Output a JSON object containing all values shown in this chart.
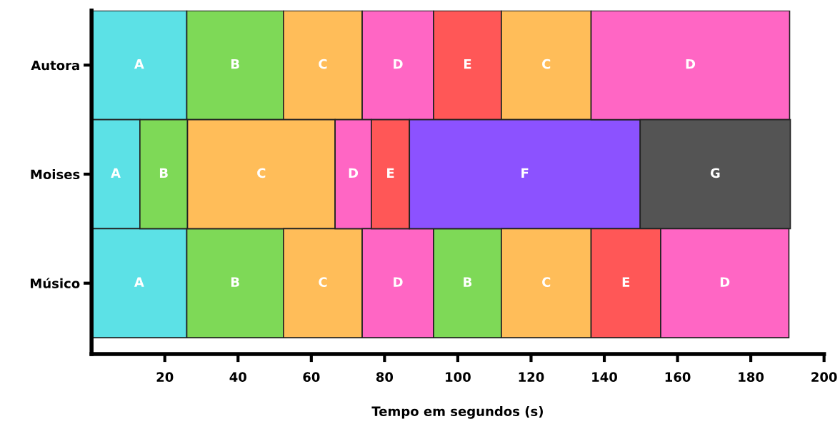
{
  "chart_data": {
    "type": "bar",
    "orientation": "horizontal",
    "stacked": true,
    "xlabel": "Tempo em segundos (s)",
    "categories": [
      "Autora",
      "Moises",
      "Músico"
    ],
    "xlim": [
      0,
      200
    ],
    "xticks": [
      20,
      40,
      60,
      80,
      100,
      120,
      140,
      160,
      180,
      200
    ],
    "grid": false,
    "legend": false,
    "series": [
      {
        "values": [
          26,
          13.2,
          26
        ],
        "colors": [
          "#5ce1e6",
          "#5ce1e6",
          "#5ce1e6"
        ],
        "value_labels": [
          "A",
          "A",
          "A"
        ]
      },
      {
        "values": [
          26.4,
          13,
          26.4
        ],
        "colors": [
          "#7ed957",
          "#7ed957",
          "#7ed957"
        ],
        "value_labels": [
          "B",
          "B",
          "B"
        ]
      },
      {
        "values": [
          21.5,
          40.3,
          21.5
        ],
        "colors": [
          "#ffbd59",
          "#ffbd59",
          "#ffbd59"
        ],
        "value_labels": [
          "C",
          "C",
          "C"
        ]
      },
      {
        "values": [
          19.5,
          9.9,
          19.5
        ],
        "colors": [
          "#ff66c4",
          "#ff66c4",
          "#ff66c4"
        ],
        "value_labels": [
          "D",
          "D",
          "D"
        ]
      },
      {
        "values": [
          18.5,
          10.4,
          18.5
        ],
        "colors": [
          "#ff5757",
          "#ff5757",
          "#7ed957"
        ],
        "value_labels": [
          "E",
          "E",
          "B"
        ]
      },
      {
        "values": [
          24.5,
          63,
          24.5
        ],
        "colors": [
          "#ffbd59",
          "#8c52ff",
          "#ffbd59"
        ],
        "value_labels": [
          "C",
          "F",
          "C"
        ]
      },
      {
        "values": [
          54.2,
          41,
          19
        ],
        "colors": [
          "#ff66c4",
          "#545454",
          "#ff5757"
        ],
        "value_labels": [
          "D",
          "G",
          "E"
        ]
      },
      {
        "values": [
          null,
          null,
          35
        ],
        "colors": [
          null,
          null,
          "#ff66c4"
        ],
        "value_labels": [
          null,
          null,
          "D"
        ]
      }
    ]
  }
}
